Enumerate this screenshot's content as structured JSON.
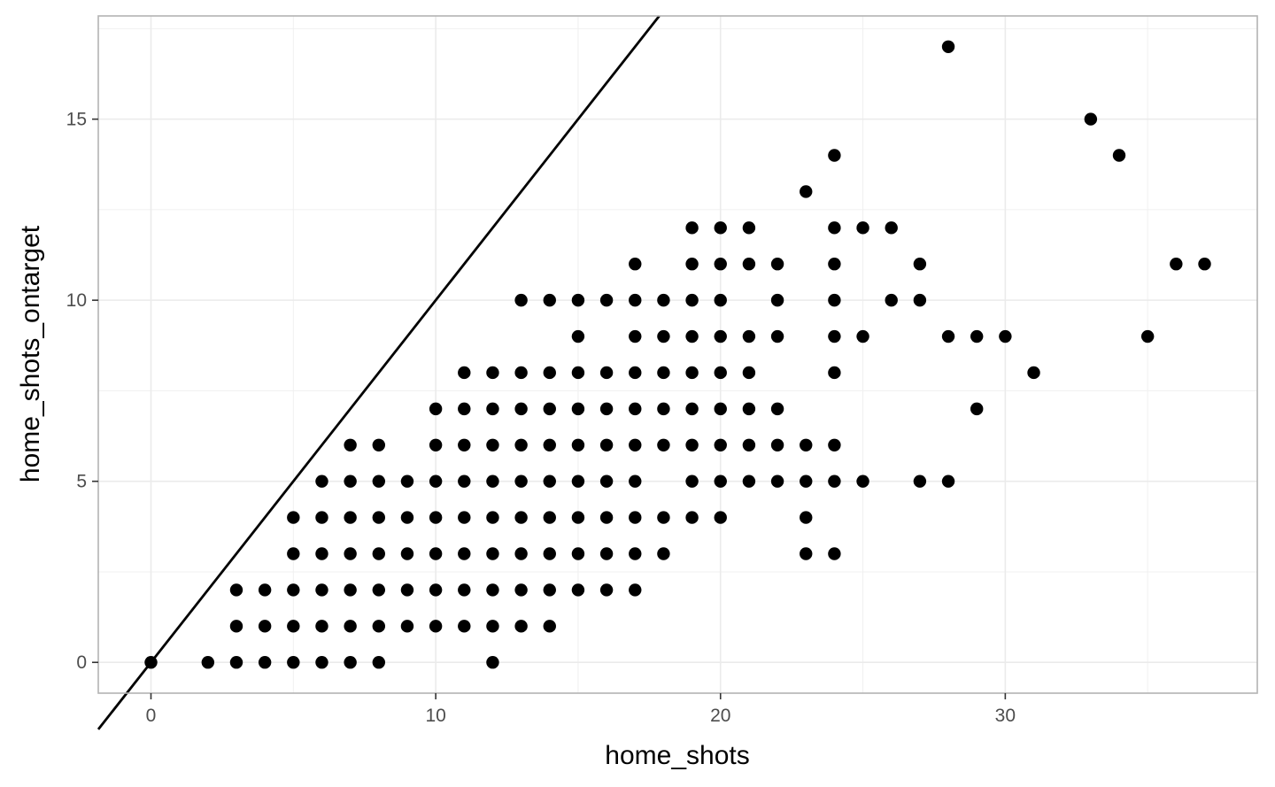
{
  "chart_data": {
    "type": "scatter",
    "title": "",
    "xlabel": "home_shots",
    "ylabel": "home_shots_ontarget",
    "xlim": [
      -1.85,
      38.85
    ],
    "ylim": [
      -0.85,
      17.85
    ],
    "x_ticks": [
      0,
      10,
      20,
      30
    ],
    "y_ticks": [
      0,
      5,
      10,
      15
    ],
    "x_tick_labels": [
      "0",
      "10",
      "20",
      "30"
    ],
    "y_tick_labels": [
      "0",
      "5",
      "10",
      "15"
    ],
    "grid": true,
    "reference_line": {
      "type": "abline",
      "intercept": 0,
      "slope": 1
    },
    "colors": {
      "point": "#000000",
      "line": "#000000",
      "grid": "#ebebeb",
      "panel_border": "#b3b3b3"
    },
    "points": [
      [
        0,
        0
      ],
      [
        2,
        0
      ],
      [
        3,
        0
      ],
      [
        4,
        0
      ],
      [
        5,
        0
      ],
      [
        6,
        0
      ],
      [
        7,
        0
      ],
      [
        8,
        0
      ],
      [
        12,
        0
      ],
      [
        3,
        1
      ],
      [
        4,
        1
      ],
      [
        5,
        1
      ],
      [
        6,
        1
      ],
      [
        7,
        1
      ],
      [
        8,
        1
      ],
      [
        9,
        1
      ],
      [
        10,
        1
      ],
      [
        11,
        1
      ],
      [
        12,
        1
      ],
      [
        13,
        1
      ],
      [
        14,
        1
      ],
      [
        3,
        2
      ],
      [
        4,
        2
      ],
      [
        5,
        2
      ],
      [
        6,
        2
      ],
      [
        7,
        2
      ],
      [
        8,
        2
      ],
      [
        9,
        2
      ],
      [
        10,
        2
      ],
      [
        11,
        2
      ],
      [
        12,
        2
      ],
      [
        13,
        2
      ],
      [
        14,
        2
      ],
      [
        15,
        2
      ],
      [
        16,
        2
      ],
      [
        17,
        2
      ],
      [
        5,
        3
      ],
      [
        6,
        3
      ],
      [
        7,
        3
      ],
      [
        8,
        3
      ],
      [
        9,
        3
      ],
      [
        10,
        3
      ],
      [
        11,
        3
      ],
      [
        12,
        3
      ],
      [
        13,
        3
      ],
      [
        14,
        3
      ],
      [
        15,
        3
      ],
      [
        16,
        3
      ],
      [
        17,
        3
      ],
      [
        18,
        3
      ],
      [
        23,
        3
      ],
      [
        24,
        3
      ],
      [
        5,
        4
      ],
      [
        6,
        4
      ],
      [
        7,
        4
      ],
      [
        8,
        4
      ],
      [
        9,
        4
      ],
      [
        10,
        4
      ],
      [
        11,
        4
      ],
      [
        12,
        4
      ],
      [
        13,
        4
      ],
      [
        14,
        4
      ],
      [
        15,
        4
      ],
      [
        16,
        4
      ],
      [
        17,
        4
      ],
      [
        18,
        4
      ],
      [
        19,
        4
      ],
      [
        20,
        4
      ],
      [
        23,
        4
      ],
      [
        6,
        5
      ],
      [
        7,
        5
      ],
      [
        8,
        5
      ],
      [
        9,
        5
      ],
      [
        10,
        5
      ],
      [
        11,
        5
      ],
      [
        12,
        5
      ],
      [
        13,
        5
      ],
      [
        14,
        5
      ],
      [
        15,
        5
      ],
      [
        16,
        5
      ],
      [
        17,
        5
      ],
      [
        19,
        5
      ],
      [
        20,
        5
      ],
      [
        21,
        5
      ],
      [
        22,
        5
      ],
      [
        23,
        5
      ],
      [
        24,
        5
      ],
      [
        25,
        5
      ],
      [
        27,
        5
      ],
      [
        28,
        5
      ],
      [
        7,
        6
      ],
      [
        8,
        6
      ],
      [
        10,
        6
      ],
      [
        11,
        6
      ],
      [
        12,
        6
      ],
      [
        13,
        6
      ],
      [
        14,
        6
      ],
      [
        15,
        6
      ],
      [
        16,
        6
      ],
      [
        17,
        6
      ],
      [
        18,
        6
      ],
      [
        19,
        6
      ],
      [
        20,
        6
      ],
      [
        21,
        6
      ],
      [
        22,
        6
      ],
      [
        23,
        6
      ],
      [
        24,
        6
      ],
      [
        10,
        7
      ],
      [
        11,
        7
      ],
      [
        12,
        7
      ],
      [
        13,
        7
      ],
      [
        14,
        7
      ],
      [
        15,
        7
      ],
      [
        16,
        7
      ],
      [
        17,
        7
      ],
      [
        18,
        7
      ],
      [
        19,
        7
      ],
      [
        20,
        7
      ],
      [
        21,
        7
      ],
      [
        22,
        7
      ],
      [
        29,
        7
      ],
      [
        11,
        8
      ],
      [
        12,
        8
      ],
      [
        13,
        8
      ],
      [
        14,
        8
      ],
      [
        15,
        8
      ],
      [
        16,
        8
      ],
      [
        17,
        8
      ],
      [
        18,
        8
      ],
      [
        19,
        8
      ],
      [
        20,
        8
      ],
      [
        21,
        8
      ],
      [
        24,
        8
      ],
      [
        31,
        8
      ],
      [
        15,
        9
      ],
      [
        17,
        9
      ],
      [
        18,
        9
      ],
      [
        19,
        9
      ],
      [
        20,
        9
      ],
      [
        21,
        9
      ],
      [
        22,
        9
      ],
      [
        24,
        9
      ],
      [
        25,
        9
      ],
      [
        28,
        9
      ],
      [
        29,
        9
      ],
      [
        30,
        9
      ],
      [
        35,
        9
      ],
      [
        13,
        10
      ],
      [
        14,
        10
      ],
      [
        15,
        10
      ],
      [
        16,
        10
      ],
      [
        17,
        10
      ],
      [
        18,
        10
      ],
      [
        19,
        10
      ],
      [
        20,
        10
      ],
      [
        22,
        10
      ],
      [
        24,
        10
      ],
      [
        26,
        10
      ],
      [
        27,
        10
      ],
      [
        17,
        11
      ],
      [
        19,
        11
      ],
      [
        20,
        11
      ],
      [
        21,
        11
      ],
      [
        22,
        11
      ],
      [
        24,
        11
      ],
      [
        27,
        11
      ],
      [
        36,
        11
      ],
      [
        37,
        11
      ],
      [
        19,
        12
      ],
      [
        20,
        12
      ],
      [
        21,
        12
      ],
      [
        24,
        12
      ],
      [
        25,
        12
      ],
      [
        26,
        12
      ],
      [
        23,
        13
      ],
      [
        24,
        14
      ],
      [
        34,
        14
      ],
      [
        33,
        15
      ],
      [
        28,
        17
      ]
    ]
  }
}
